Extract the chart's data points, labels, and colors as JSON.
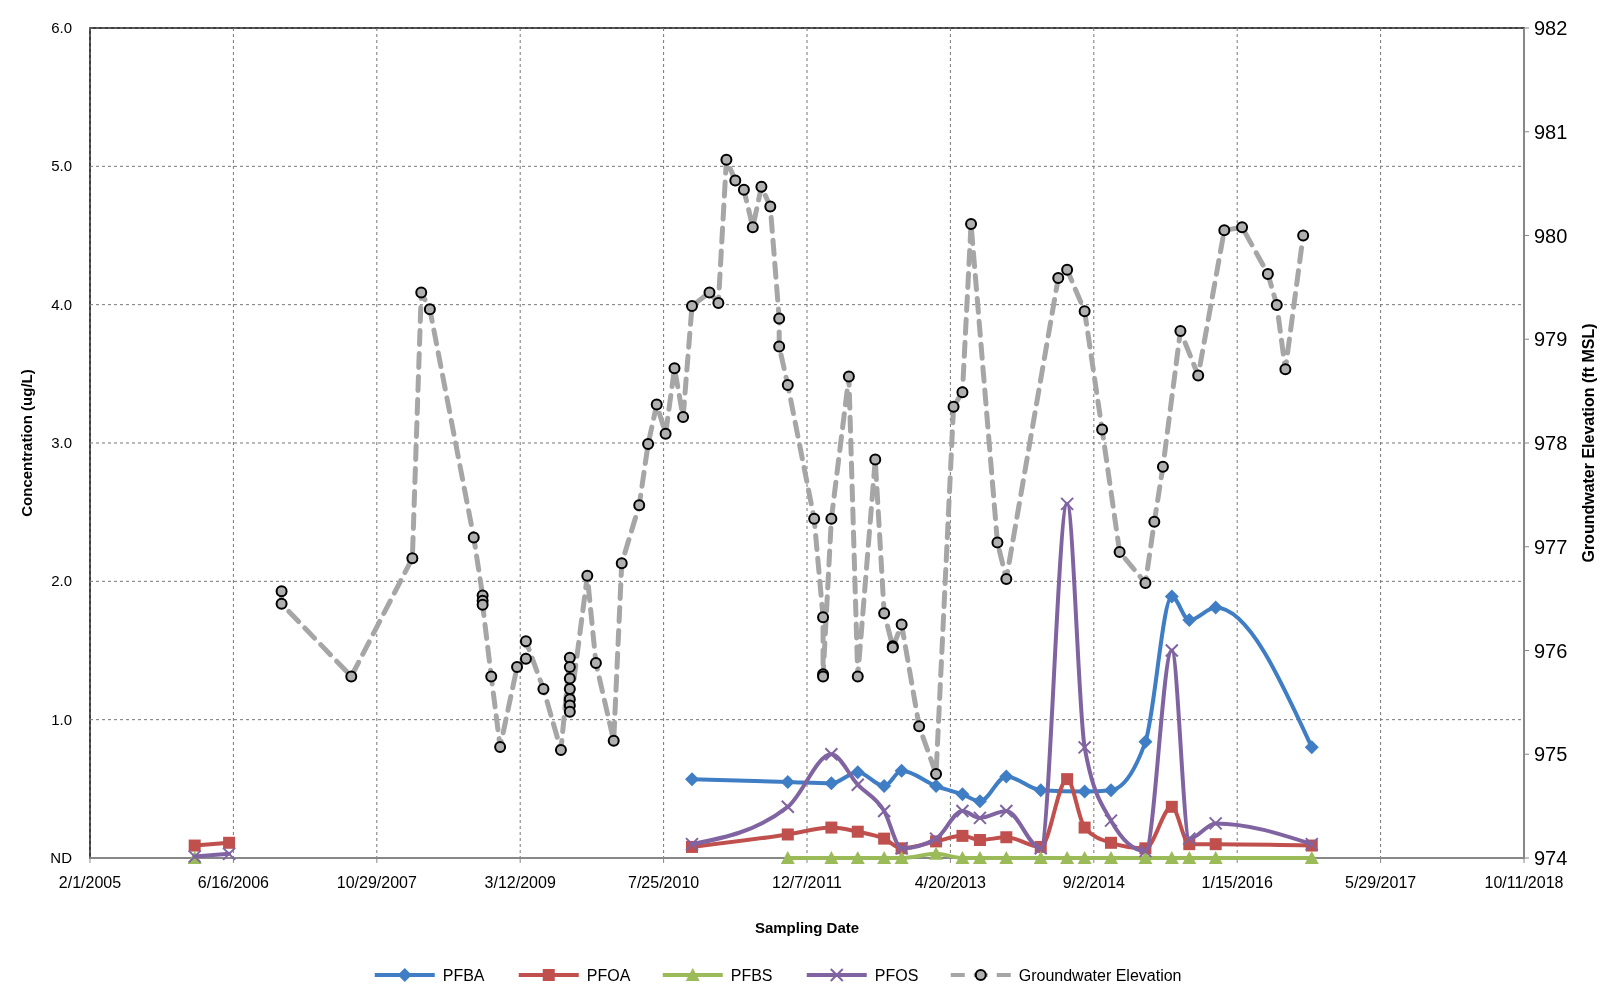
{
  "chart_data": {
    "type": "line",
    "xlabel": "Sampling Date",
    "ylabel": "Concentration (ug/L)",
    "y2label": "Groundwater Elevation (ft MSL)",
    "xlim": [
      "2005-02-01",
      "2018-10-11"
    ],
    "xticks": [
      {
        "value": "2005-02-01",
        "label": "2/1/2005"
      },
      {
        "value": "2006-06-16",
        "label": "6/16/2006"
      },
      {
        "value": "2007-10-29",
        "label": "10/29/2007"
      },
      {
        "value": "2009-03-12",
        "label": "3/12/2009"
      },
      {
        "value": "2010-07-25",
        "label": "7/25/2010"
      },
      {
        "value": "2011-12-07",
        "label": "12/7/2011"
      },
      {
        "value": "2013-04-20",
        "label": "4/20/2013"
      },
      {
        "value": "2014-09-02",
        "label": "9/2/2014"
      },
      {
        "value": "2016-01-15",
        "label": "1/15/2016"
      },
      {
        "value": "2017-05-29",
        "label": "5/29/2017"
      },
      {
        "value": "2018-10-11",
        "label": "10/11/2018"
      }
    ],
    "ylim": [
      0,
      6
    ],
    "yticks": [
      {
        "value": 0,
        "label": "ND"
      },
      {
        "value": 1,
        "label": "1.0"
      },
      {
        "value": 2,
        "label": "2.0"
      },
      {
        "value": 3,
        "label": "3.0"
      },
      {
        "value": 4,
        "label": "4.0"
      },
      {
        "value": 5,
        "label": "5.0"
      },
      {
        "value": 6,
        "label": "6.0"
      }
    ],
    "y2lim": [
      974,
      982
    ],
    "y2ticks": [
      974,
      975,
      976,
      977,
      978,
      979,
      980,
      981,
      982
    ],
    "grid": true,
    "legend": "bottom",
    "series": [
      {
        "name": "PFBA",
        "color": "#3f7dc4",
        "marker": "diamond",
        "line_style": "solid",
        "x": [
          "2010-11",
          "2011-10",
          "2012-03",
          "2012-06",
          "2012-09",
          "2012-11",
          "2013-03",
          "2013-06",
          "2013-08",
          "2013-11",
          "2014-03",
          "2014-08",
          "2014-11",
          "2015-03",
          "2015-06",
          "2015-08",
          "2015-11",
          "2016-10"
        ],
        "values": [
          0.57,
          0.55,
          0.54,
          0.62,
          0.52,
          0.63,
          0.52,
          0.46,
          0.41,
          0.59,
          0.49,
          0.48,
          0.49,
          0.84,
          1.89,
          1.72,
          1.81,
          0.8
        ]
      },
      {
        "name": "PFOA",
        "color": "#c0504d",
        "marker": "square",
        "line_style": "solid",
        "x": [
          "2006-02",
          "2006-06",
          "2008-06",
          "2010-11",
          "2011-10",
          "2012-03",
          "2012-06",
          "2012-09",
          "2012-11",
          "2013-03",
          "2013-06",
          "2013-08",
          "2013-11",
          "2014-03",
          "2014-06",
          "2014-08",
          "2014-11",
          "2015-03",
          "2015-06",
          "2015-08",
          "2015-11",
          "2016-10"
        ],
        "values": [
          0.09,
          0.11,
          null,
          0.08,
          0.17,
          0.22,
          0.19,
          0.14,
          0.07,
          0.12,
          0.16,
          0.13,
          0.15,
          0.08,
          0.57,
          0.22,
          0.11,
          0.07,
          0.37,
          0.1,
          0.1,
          0.09
        ]
      },
      {
        "name": "PFBS",
        "color": "#9bbb59",
        "marker": "triangle",
        "line_style": "solid",
        "x": [
          "2006-02",
          "2008-06",
          "2011-10",
          "2012-03",
          "2012-06",
          "2012-09",
          "2012-11",
          "2013-03",
          "2013-06",
          "2013-08",
          "2013-11",
          "2014-03",
          "2014-06",
          "2014-08",
          "2014-11",
          "2015-03",
          "2015-06",
          "2015-08",
          "2015-11",
          "2016-10"
        ],
        "values": [
          0,
          null,
          0,
          0,
          0,
          0,
          0,
          0.03,
          0,
          0,
          0,
          0,
          0,
          0,
          0,
          0,
          0,
          0,
          0,
          0
        ]
      },
      {
        "name": "PFOS",
        "color": "#8064a2",
        "marker": "cross",
        "line_style": "solid",
        "x": [
          "2006-02",
          "2006-06",
          "2008-06",
          "2010-11",
          "2011-10",
          "2012-03",
          "2012-06",
          "2012-09",
          "2012-11",
          "2013-03",
          "2013-06",
          "2013-08",
          "2013-11",
          "2014-03",
          "2014-06",
          "2014-08",
          "2014-11",
          "2015-03",
          "2015-06",
          "2015-08",
          "2015-11",
          "2016-10"
        ],
        "values": [
          0.01,
          0.03,
          null,
          0.1,
          0.37,
          0.75,
          0.53,
          0.34,
          0.07,
          0.14,
          0.34,
          0.29,
          0.34,
          0.07,
          2.56,
          0.8,
          0.27,
          0.05,
          1.5,
          0.14,
          0.25,
          0.1
        ]
      },
      {
        "name": "Groundwater Elevation",
        "color": "#a6a6a6",
        "marker": "circle",
        "line_style": "dashed",
        "axis": "y2",
        "x": [
          "2006-12",
          "2006-12",
          "2007-08",
          "2008-03",
          "2008-04",
          "2008-05",
          "2008-10",
          "2008-11",
          "2008-11",
          "2008-11",
          "2008-12",
          "2009-01",
          "2009-03",
          "2009-04",
          "2009-04",
          "2009-06",
          "2009-08",
          "2009-09",
          "2009-09",
          "2009-09",
          "2009-09",
          "2009-09",
          "2009-09",
          "2009-09",
          "2009-11",
          "2009-12",
          "2010-02",
          "2010-03",
          "2010-05",
          "2010-06",
          "2010-07",
          "2010-08",
          "2010-09",
          "2010-10",
          "2010-11",
          "2011-01",
          "2011-02",
          "2011-03",
          "2011-04",
          "2011-05",
          "2011-06",
          "2011-07",
          "2011-08",
          "2011-09",
          "2011-09",
          "2011-10",
          "2012-01",
          "2012-02",
          "2012-02",
          "2012-02",
          "2012-03",
          "2012-05",
          "2012-06",
          "2012-08",
          "2012-09",
          "2012-10",
          "2012-10",
          "2012-11",
          "2013-01",
          "2013-03",
          "2013-05",
          "2013-06",
          "2013-07",
          "2013-10",
          "2013-11",
          "2014-05",
          "2014-06",
          "2014-08",
          "2014-10",
          "2014-12",
          "2015-03",
          "2015-04",
          "2015-05",
          "2015-07",
          "2015-09",
          "2015-12",
          "2016-02",
          "2016-05",
          "2016-06",
          "2016-07",
          "2016-09"
        ],
        "values": [
          976.57,
          976.45,
          975.75,
          976.89,
          979.45,
          979.29,
          977.09,
          976.53,
          976.48,
          976.44,
          975.75,
          975.07,
          975.84,
          975.92,
          976.09,
          975.63,
          975.04,
          975.93,
          975.84,
          975.73,
          975.63,
          975.53,
          975.47,
          975.41,
          976.72,
          975.88,
          975.13,
          976.84,
          977.4,
          977.99,
          978.37,
          978.09,
          978.72,
          978.25,
          979.32,
          979.45,
          979.35,
          980.73,
          980.53,
          980.44,
          980.08,
          980.47,
          980.28,
          979.2,
          978.93,
          978.56,
          977.27,
          976.32,
          975.77,
          975.75,
          977.27,
          978.64,
          975.75,
          977.84,
          976.36,
          976.04,
          976.03,
          976.25,
          975.27,
          974.81,
          978.35,
          978.49,
          980.11,
          977.04,
          976.69,
          979.59,
          979.67,
          979.27,
          978.13,
          976.95,
          976.65,
          977.24,
          977.77,
          979.08,
          978.65,
          980.05,
          980.08,
          979.63,
          979.33,
          978.71,
          980
        ]
      }
    ]
  }
}
